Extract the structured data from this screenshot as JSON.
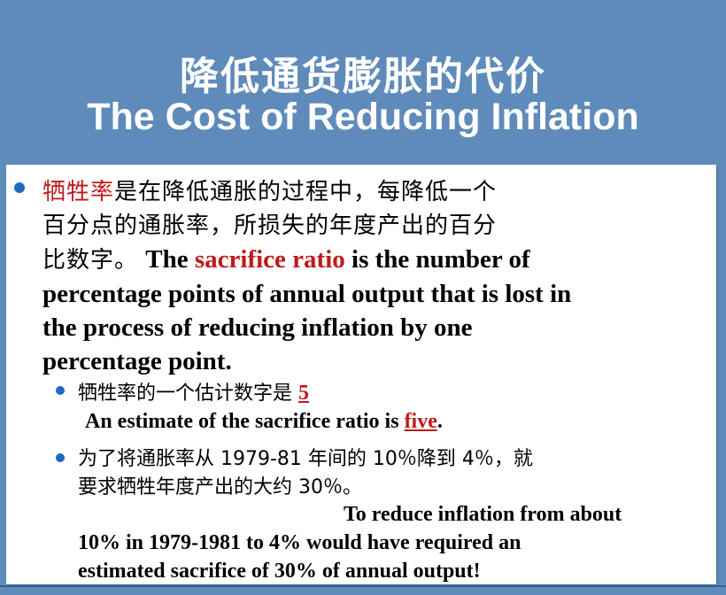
{
  "title": {
    "zh": "降低通货膨胀的代价",
    "en": "The Cost of Reducing Inflation"
  },
  "main_bullet": {
    "zh_term": "牺牲率",
    "zh_line1_rest": "是在降低通胀的过程中，每降低一个",
    "zh_line2": "百分点的通胀率，所损失的年度产出的百分",
    "zh_line3": "比数字。",
    "en_pre": "The ",
    "en_term": "sacrifice ratio",
    "en_line1_rest": " is the number of",
    "en_line2": "percentage points of annual output that is lost in",
    "en_line3": "the process of reducing inflation by one",
    "en_line4": "percentage point."
  },
  "sub_bullet_1": {
    "zh": "牺牲率的一个估计数字是 ",
    "zh_value": "5",
    "en_pre": "An estimate of the sacrifice ratio is ",
    "en_value": "five",
    "en_post": "."
  },
  "sub_bullet_2": {
    "zh_line1": "为了将通胀率从 1979-81 年间的 10％降到 4％，就",
    "zh_line2": "要求牺牲年度产出的大约 30％。",
    "en_line1": "To reduce inflation from about",
    "en_line2": "10% in  1979-1981 to 4% would have required an",
    "en_line3": "estimated sacrifice of 30% of annual output!"
  },
  "colors": {
    "background": "#5f8bbb",
    "highlight_red": "#c0191b",
    "bullet_blue": "#1f69c1"
  }
}
